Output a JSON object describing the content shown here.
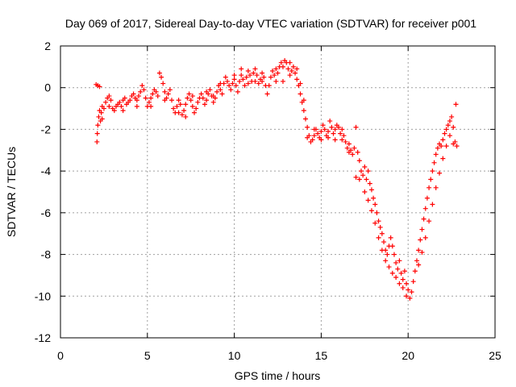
{
  "chart_data": {
    "type": "scatter",
    "title": "Day 069 of 2017, Sidereal Day-to-day VTEC variation (SDTVAR) for receiver p001",
    "xlabel": "GPS time / hours",
    "ylabel": "SDTVAR / TECUs",
    "xlim": [
      0,
      25
    ],
    "ylim": [
      -12,
      2
    ],
    "xticks": [
      0,
      5,
      10,
      15,
      20,
      25
    ],
    "yticks": [
      -12,
      -10,
      -8,
      -6,
      -4,
      -2,
      0,
      2
    ],
    "grid": true,
    "marker": "+",
    "series_color": "#ff0000",
    "series": [
      {
        "name": "p001",
        "points": [
          [
            2.05,
            0.15
          ],
          [
            2.15,
            0.1
          ],
          [
            2.25,
            0.05
          ],
          [
            2.1,
            -2.6
          ],
          [
            2.12,
            -2.2
          ],
          [
            2.15,
            -1.8
          ],
          [
            2.2,
            -1.4
          ],
          [
            2.25,
            -1.1
          ],
          [
            2.3,
            -1.6
          ],
          [
            2.35,
            -1.2
          ],
          [
            2.4,
            -0.9
          ],
          [
            2.5,
            -1.0
          ],
          [
            2.6,
            -0.7
          ],
          [
            2.7,
            -0.5
          ],
          [
            2.8,
            -0.4
          ],
          [
            2.9,
            -0.6
          ],
          [
            3.0,
            -1.0
          ],
          [
            3.1,
            -1.1
          ],
          [
            3.2,
            -0.9
          ],
          [
            3.3,
            -0.8
          ],
          [
            3.4,
            -0.7
          ],
          [
            3.5,
            -0.9
          ],
          [
            3.6,
            -0.6
          ],
          [
            3.7,
            -0.5
          ],
          [
            3.8,
            -0.8
          ],
          [
            3.9,
            -0.7
          ],
          [
            4.0,
            -0.6
          ],
          [
            4.1,
            -0.4
          ],
          [
            4.2,
            -0.3
          ],
          [
            4.3,
            -0.5
          ],
          [
            4.4,
            -0.6
          ],
          [
            4.5,
            -0.4
          ],
          [
            4.6,
            -0.2
          ],
          [
            4.7,
            0.1
          ],
          [
            4.8,
            -0.1
          ],
          [
            4.9,
            -0.5
          ],
          [
            5.0,
            -0.9
          ],
          [
            5.1,
            -0.7
          ],
          [
            5.2,
            -0.5
          ],
          [
            5.3,
            -0.3
          ],
          [
            5.4,
            -0.1
          ],
          [
            5.5,
            -0.2
          ],
          [
            5.6,
            -0.4
          ],
          [
            5.7,
            0.7
          ],
          [
            5.8,
            0.5
          ],
          [
            5.9,
            0.2
          ],
          [
            6.0,
            -0.2
          ],
          [
            6.1,
            -0.5
          ],
          [
            6.2,
            -0.3
          ],
          [
            6.3,
            -0.1
          ],
          [
            6.4,
            -0.6
          ],
          [
            6.5,
            -1.0
          ],
          [
            6.6,
            -1.2
          ],
          [
            6.7,
            -0.9
          ],
          [
            6.8,
            -0.6
          ],
          [
            6.9,
            -0.8
          ],
          [
            7.0,
            -1.3
          ],
          [
            7.1,
            -1.1
          ],
          [
            7.2,
            -0.8
          ],
          [
            7.3,
            -0.5
          ],
          [
            7.4,
            -0.3
          ],
          [
            7.5,
            -0.6
          ],
          [
            7.6,
            -0.9
          ],
          [
            7.7,
            -1.2
          ],
          [
            7.8,
            -1.0
          ],
          [
            7.9,
            -0.7
          ],
          [
            8.0,
            -0.5
          ],
          [
            8.1,
            -0.3
          ],
          [
            8.2,
            -0.5
          ],
          [
            8.3,
            -0.8
          ],
          [
            8.4,
            -0.6
          ],
          [
            8.5,
            -0.3
          ],
          [
            8.6,
            -0.1
          ],
          [
            8.7,
            -0.4
          ],
          [
            8.8,
            -0.7
          ],
          [
            8.9,
            -0.5
          ],
          [
            9.0,
            -0.2
          ],
          [
            9.1,
            0.1
          ],
          [
            9.2,
            -0.1
          ],
          [
            9.3,
            -0.3
          ],
          [
            9.4,
            0.2
          ],
          [
            9.5,
            0.5
          ],
          [
            9.6,
            0.3
          ],
          [
            9.7,
            0.1
          ],
          [
            9.8,
            -0.1
          ],
          [
            9.9,
            0.2
          ],
          [
            10.0,
            0.4
          ],
          [
            10.1,
            0.1
          ],
          [
            10.2,
            -0.2
          ],
          [
            10.3,
            0.3
          ],
          [
            10.4,
            0.6
          ],
          [
            10.5,
            0.4
          ],
          [
            10.6,
            0.1
          ],
          [
            10.7,
            0.5
          ],
          [
            10.8,
            0.8
          ],
          [
            10.9,
            0.6
          ],
          [
            11.0,
            0.3
          ],
          [
            11.1,
            0.7
          ],
          [
            11.2,
            0.9
          ],
          [
            11.3,
            0.6
          ],
          [
            11.4,
            0.2
          ],
          [
            11.5,
            0.4
          ],
          [
            11.6,
            0.7
          ],
          [
            11.7,
            0.5
          ],
          [
            11.8,
            0.1
          ],
          [
            11.9,
            -0.3
          ],
          [
            12.0,
            0.1
          ],
          [
            12.1,
            0.5
          ],
          [
            12.2,
            0.8
          ],
          [
            12.3,
            0.6
          ],
          [
            12.4,
            0.3
          ],
          [
            12.5,
            0.7
          ],
          [
            12.6,
            1.0
          ],
          [
            12.7,
            1.2
          ],
          [
            12.8,
            1.0
          ],
          [
            12.9,
            1.3
          ],
          [
            13.0,
            1.2
          ],
          [
            13.1,
            0.9
          ],
          [
            13.2,
            0.6
          ],
          [
            13.3,
            0.8
          ],
          [
            13.4,
            1.0
          ],
          [
            13.5,
            0.7
          ],
          [
            13.6,
            0.4
          ],
          [
            13.7,
            0.1
          ],
          [
            13.8,
            -0.3
          ],
          [
            13.9,
            -0.7
          ],
          [
            14.0,
            -1.1
          ],
          [
            14.1,
            -1.5
          ],
          [
            14.2,
            -1.9
          ],
          [
            14.3,
            -2.3
          ],
          [
            14.4,
            -2.6
          ],
          [
            14.5,
            -2.5
          ],
          [
            14.6,
            -2.3
          ],
          [
            14.7,
            -2.0
          ],
          [
            14.8,
            -2.2
          ],
          [
            14.9,
            -2.4
          ],
          [
            15.0,
            -2.1
          ],
          [
            15.1,
            -1.8
          ],
          [
            15.2,
            -2.0
          ],
          [
            15.3,
            -2.3
          ],
          [
            15.4,
            -2.1
          ],
          [
            15.5,
            -1.6
          ],
          [
            15.6,
            -1.9
          ],
          [
            15.7,
            -2.2
          ],
          [
            15.8,
            -2.0
          ],
          [
            15.9,
            -1.8
          ],
          [
            16.0,
            -1.9
          ],
          [
            16.1,
            -2.2
          ],
          [
            16.2,
            -2.5
          ],
          [
            16.3,
            -2.3
          ],
          [
            16.4,
            -2.6
          ],
          [
            16.5,
            -2.9
          ],
          [
            16.6,
            -2.7
          ],
          [
            16.7,
            -3.0
          ],
          [
            16.8,
            -3.2
          ],
          [
            16.9,
            -2.9
          ],
          [
            17.0,
            -1.9
          ],
          [
            17.1,
            -3.1
          ],
          [
            17.2,
            -3.5
          ],
          [
            17.3,
            -4.0
          ],
          [
            17.4,
            -4.2
          ],
          [
            17.5,
            -3.8
          ],
          [
            17.6,
            -4.4
          ],
          [
            17.7,
            -4.0
          ],
          [
            17.8,
            -4.6
          ],
          [
            17.9,
            -4.9
          ],
          [
            18.0,
            -5.3
          ],
          [
            18.1,
            -5.6
          ],
          [
            18.2,
            -6.0
          ],
          [
            18.3,
            -6.4
          ],
          [
            18.4,
            -6.7
          ],
          [
            18.5,
            -7.0
          ],
          [
            18.6,
            -7.4
          ],
          [
            18.7,
            -7.8
          ],
          [
            18.8,
            -8.0
          ],
          [
            18.9,
            -7.6
          ],
          [
            19.0,
            -7.2
          ],
          [
            19.1,
            -7.6
          ],
          [
            19.2,
            -8.0
          ],
          [
            19.3,
            -8.4
          ],
          [
            19.4,
            -8.7
          ],
          [
            19.5,
            -8.3
          ],
          [
            19.6,
            -8.9
          ],
          [
            19.7,
            -9.2
          ],
          [
            19.8,
            -8.8
          ],
          [
            19.9,
            -9.4
          ],
          [
            20.0,
            -9.7
          ],
          [
            20.1,
            -10.1
          ],
          [
            20.2,
            -9.8
          ],
          [
            20.3,
            -9.3
          ],
          [
            20.4,
            -8.8
          ],
          [
            20.5,
            -8.3
          ],
          [
            20.6,
            -7.8
          ],
          [
            20.7,
            -7.3
          ],
          [
            20.8,
            -6.8
          ],
          [
            20.9,
            -6.3
          ],
          [
            21.0,
            -5.8
          ],
          [
            21.1,
            -5.3
          ],
          [
            21.2,
            -4.8
          ],
          [
            21.3,
            -4.4
          ],
          [
            21.4,
            -4.0
          ],
          [
            21.5,
            -3.6
          ],
          [
            21.6,
            -3.2
          ],
          [
            21.7,
            -2.9
          ],
          [
            21.8,
            -2.7
          ],
          [
            21.9,
            -2.8
          ],
          [
            22.0,
            -2.5
          ],
          [
            22.1,
            -2.2
          ],
          [
            22.2,
            -2.0
          ],
          [
            22.3,
            -1.8
          ],
          [
            22.4,
            -1.6
          ],
          [
            22.5,
            -1.4
          ],
          [
            22.6,
            -1.9
          ],
          [
            22.7,
            -2.6
          ],
          [
            22.75,
            -0.8
          ],
          [
            22.8,
            -2.8
          ],
          [
            17.0,
            -4.3
          ],
          [
            17.2,
            -4.4
          ],
          [
            17.5,
            -5.0
          ],
          [
            17.7,
            -5.4
          ],
          [
            17.9,
            -5.9
          ],
          [
            18.1,
            -6.5
          ],
          [
            18.3,
            -7.2
          ],
          [
            18.5,
            -7.8
          ],
          [
            18.7,
            -8.3
          ],
          [
            18.9,
            -8.6
          ],
          [
            19.1,
            -8.9
          ],
          [
            19.3,
            -9.1
          ],
          [
            19.5,
            -9.4
          ],
          [
            19.7,
            -9.6
          ],
          [
            19.9,
            -10.0
          ],
          [
            20.6,
            -8.5
          ],
          [
            20.8,
            -7.9
          ],
          [
            21.0,
            -7.2
          ],
          [
            21.2,
            -6.4
          ],
          [
            21.4,
            -5.6
          ],
          [
            21.6,
            -4.8
          ],
          [
            21.8,
            -4.1
          ],
          [
            22.0,
            -3.4
          ],
          [
            22.2,
            -2.8
          ],
          [
            22.4,
            -2.3
          ],
          [
            22.6,
            -2.7
          ],
          [
            14.2,
            -2.4
          ],
          [
            14.6,
            -2.0
          ],
          [
            15.0,
            -2.5
          ],
          [
            15.4,
            -2.4
          ],
          [
            15.8,
            -2.5
          ],
          [
            16.2,
            -2.0
          ],
          [
            16.6,
            -3.1
          ],
          [
            14.0,
            -0.6
          ],
          [
            13.8,
            0.2
          ],
          [
            13.6,
            0.9
          ],
          [
            12.4,
            0.9
          ],
          [
            11.6,
            0.3
          ],
          [
            10.8,
            0.2
          ],
          [
            10.0,
            0.6
          ],
          [
            9.2,
            0.2
          ],
          [
            8.4,
            -0.2
          ],
          [
            7.6,
            -0.4
          ],
          [
            6.8,
            -1.2
          ],
          [
            6.0,
            -0.6
          ],
          [
            5.2,
            -0.9
          ],
          [
            4.4,
            -0.9
          ],
          [
            3.6,
            -1.1
          ],
          [
            2.8,
            -0.9
          ],
          [
            2.4,
            -1.5
          ],
          [
            7.2,
            -1.4
          ],
          [
            8.8,
            -0.4
          ],
          [
            10.4,
            0.9
          ],
          [
            11.2,
            0.3
          ],
          [
            12.8,
            0.3
          ],
          [
            13.2,
            1.2
          ]
        ]
      }
    ]
  }
}
